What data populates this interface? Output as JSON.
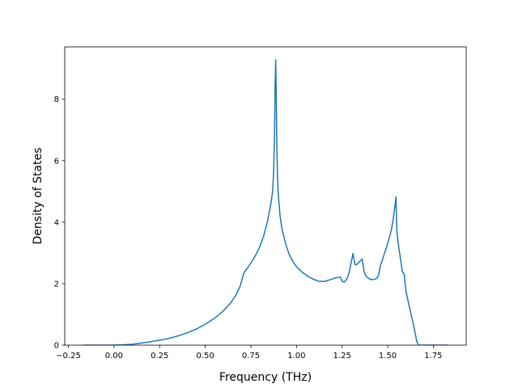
{
  "chart_data": {
    "type": "line",
    "title": "",
    "xlabel": "Frequency (THz)",
    "ylabel": "Density of States",
    "xlim": [
      -0.27,
      1.93
    ],
    "ylim": [
      0,
      9.7
    ],
    "grid": false,
    "legend": "none",
    "xticks": [
      -0.25,
      0.0,
      0.25,
      0.5,
      0.75,
      1.0,
      1.25,
      1.5,
      1.75
    ],
    "xtick_labels": [
      "−0.25",
      "0.00",
      "0.25",
      "0.50",
      "0.75",
      "1.00",
      "1.25",
      "1.50",
      "1.75"
    ],
    "yticks": [
      0,
      2,
      4,
      6,
      8
    ],
    "ytick_labels": [
      "0",
      "2",
      "4",
      "6",
      "8"
    ],
    "series": [
      {
        "color": "#1f77b4",
        "x": [
          -0.17,
          0.0,
          0.05,
          0.1,
          0.15,
          0.2,
          0.25,
          0.3,
          0.35,
          0.4,
          0.45,
          0.5,
          0.55,
          0.6,
          0.64,
          0.67,
          0.69,
          0.7,
          0.71,
          0.72,
          0.74,
          0.76,
          0.78,
          0.8,
          0.82,
          0.84,
          0.86,
          0.87,
          0.875,
          0.88,
          0.883,
          0.886,
          0.889,
          0.892,
          0.896,
          0.9,
          0.91,
          0.92,
          0.94,
          0.96,
          0.98,
          1.0,
          1.03,
          1.06,
          1.09,
          1.12,
          1.15,
          1.18,
          1.21,
          1.24,
          1.25,
          1.26,
          1.27,
          1.28,
          1.29,
          1.3,
          1.31,
          1.32,
          1.33,
          1.34,
          1.35,
          1.36,
          1.37,
          1.38,
          1.4,
          1.42,
          1.44,
          1.45,
          1.46,
          1.47,
          1.48,
          1.5,
          1.52,
          1.53,
          1.54,
          1.545,
          1.55,
          1.56,
          1.58,
          1.59,
          1.6,
          1.62,
          1.64,
          1.66,
          1.67,
          1.7,
          1.75,
          1.83
        ],
        "y": [
          0.0,
          0.0,
          0.01,
          0.03,
          0.07,
          0.11,
          0.16,
          0.22,
          0.3,
          0.4,
          0.52,
          0.68,
          0.87,
          1.12,
          1.38,
          1.65,
          1.9,
          2.1,
          2.33,
          2.42,
          2.58,
          2.76,
          2.97,
          3.22,
          3.55,
          4.0,
          4.6,
          5.05,
          5.7,
          7.0,
          8.5,
          9.28,
          8.2,
          6.5,
          5.5,
          4.9,
          4.2,
          3.8,
          3.3,
          2.95,
          2.72,
          2.55,
          2.38,
          2.25,
          2.15,
          2.08,
          2.07,
          2.12,
          2.18,
          2.22,
          2.08,
          2.05,
          2.1,
          2.2,
          2.4,
          2.7,
          2.98,
          2.62,
          2.62,
          2.68,
          2.74,
          2.8,
          2.4,
          2.25,
          2.15,
          2.13,
          2.17,
          2.28,
          2.6,
          2.75,
          2.95,
          3.3,
          3.75,
          4.1,
          4.55,
          4.82,
          3.7,
          3.2,
          2.4,
          2.3,
          1.75,
          1.2,
          0.7,
          0.1,
          0.0,
          0.0,
          0.0,
          0.0
        ]
      }
    ]
  }
}
